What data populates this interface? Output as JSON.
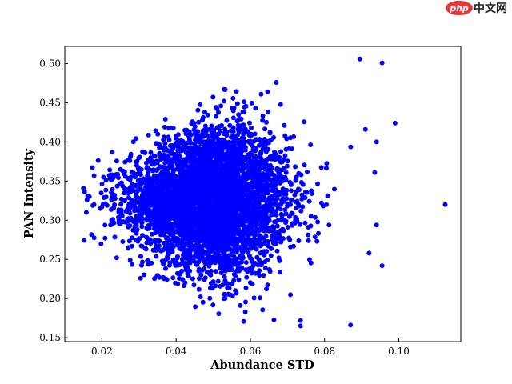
{
  "watermark": {
    "logo_text": "php",
    "site_text": "中文网",
    "logo_color": "#e4393c"
  },
  "chart_data": {
    "type": "scatter",
    "title": "",
    "xlabel": "Abundance STD",
    "ylabel": "PAN Intensity",
    "xlim": [
      0.01,
      0.1167
    ],
    "ylim": [
      0.145,
      0.522
    ],
    "xticks": [
      0.02,
      0.04,
      0.06,
      0.08,
      0.1
    ],
    "xtick_labels": [
      "0.02",
      "0.04",
      "0.06",
      "0.08",
      "0.10"
    ],
    "yticks": [
      0.15,
      0.2,
      0.25,
      0.3,
      0.35,
      0.4,
      0.45,
      0.5
    ],
    "ytick_labels": [
      "0.15",
      "0.20",
      "0.25",
      "0.30",
      "0.35",
      "0.40",
      "0.45",
      "0.50"
    ],
    "grid": false,
    "marker_color": "#0000ff",
    "cloud": {
      "approx_points": 4500,
      "x_center": 0.049,
      "x_std": 0.0105,
      "y_center": 0.325,
      "y_std": 0.042,
      "x_range": [
        0.015,
        0.092
      ],
      "y_range": [
        0.165,
        0.476
      ]
    },
    "notable_points": [
      {
        "x": 0.1125,
        "y": 0.32
      },
      {
        "x": 0.0895,
        "y": 0.506
      },
      {
        "x": 0.0955,
        "y": 0.501
      },
      {
        "x": 0.099,
        "y": 0.424
      },
      {
        "x": 0.091,
        "y": 0.416
      },
      {
        "x": 0.094,
        "y": 0.4
      },
      {
        "x": 0.0935,
        "y": 0.361
      },
      {
        "x": 0.0955,
        "y": 0.242
      },
      {
        "x": 0.094,
        "y": 0.294
      },
      {
        "x": 0.092,
        "y": 0.258
      },
      {
        "x": 0.087,
        "y": 0.166
      },
      {
        "x": 0.067,
        "y": 0.476
      },
      {
        "x": 0.015,
        "y": 0.341
      },
      {
        "x": 0.0158,
        "y": 0.31
      },
      {
        "x": 0.016,
        "y": 0.326
      },
      {
        "x": 0.0735,
        "y": 0.165
      },
      {
        "x": 0.0735,
        "y": 0.172
      }
    ]
  }
}
